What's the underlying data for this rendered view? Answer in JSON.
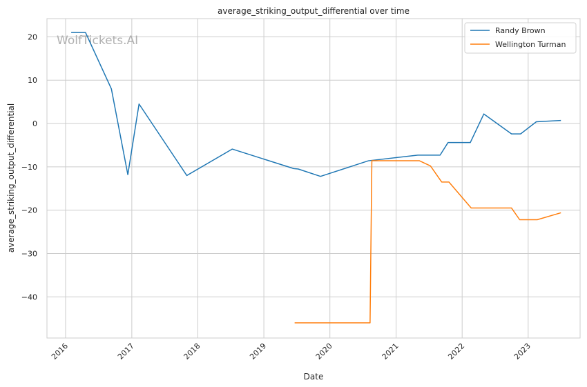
{
  "chart_data": {
    "type": "line",
    "title": "average_striking_output_differential over time",
    "xlabel": "Date",
    "ylabel": "average_striking_output_differential",
    "watermark": "WolfTickets.AI",
    "x_ticks": [
      "2016",
      "2017",
      "2018",
      "2019",
      "2020",
      "2021",
      "2022",
      "2023"
    ],
    "y_ticks": [
      20,
      10,
      0,
      -10,
      -20,
      -30,
      -40
    ],
    "xlim": [
      "2015-09-20",
      "2023-10-15"
    ],
    "ylim": [
      -49.5,
      24.2
    ],
    "grid": true,
    "legend_position": "top-right",
    "series": [
      {
        "name": "Randy Brown",
        "color": "#1f77b4",
        "points": [
          [
            "2016-02-01",
            21.0
          ],
          [
            "2016-04-20",
            21.0
          ],
          [
            "2016-09-10",
            8.0
          ],
          [
            "2016-12-10",
            -11.8
          ],
          [
            "2017-02-10",
            4.5
          ],
          [
            "2017-11-01",
            -12.0
          ],
          [
            "2018-07-10",
            -5.9
          ],
          [
            "2019-06-15",
            -10.4
          ],
          [
            "2019-07-10",
            -10.5
          ],
          [
            "2019-11-10",
            -12.2
          ],
          [
            "2020-08-01",
            -8.6
          ],
          [
            "2021-05-01",
            -7.3
          ],
          [
            "2021-09-01",
            -7.3
          ],
          [
            "2021-10-15",
            -4.4
          ],
          [
            "2022-02-15",
            -4.4
          ],
          [
            "2022-05-01",
            2.2
          ],
          [
            "2022-10-01",
            -2.4
          ],
          [
            "2022-11-20",
            -2.4
          ],
          [
            "2023-02-15",
            0.4
          ],
          [
            "2023-07-01",
            0.7
          ]
        ]
      },
      {
        "name": "Wellington Turman",
        "color": "#ff7f0e",
        "points": [
          [
            "2019-06-20",
            -46.0
          ],
          [
            "2020-08-10",
            -46.0
          ],
          [
            "2020-08-20",
            -8.6
          ],
          [
            "2021-05-10",
            -8.6
          ],
          [
            "2021-07-10",
            -9.8
          ],
          [
            "2021-09-10",
            -13.5
          ],
          [
            "2021-10-20",
            -13.5
          ],
          [
            "2022-02-20",
            -19.5
          ],
          [
            "2022-10-01",
            -19.5
          ],
          [
            "2022-11-15",
            -22.2
          ],
          [
            "2023-02-20",
            -22.2
          ],
          [
            "2023-07-01",
            -20.6
          ]
        ]
      }
    ]
  }
}
